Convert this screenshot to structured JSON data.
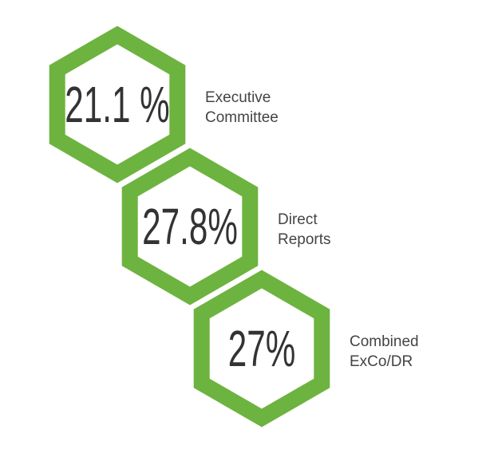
{
  "items": [
    {
      "value": "21.1 %",
      "label": [
        "Executive",
        "Committee"
      ]
    },
    {
      "value": "27.8%",
      "label": [
        "Direct",
        "Reports"
      ]
    },
    {
      "value": "27%",
      "label": [
        "Combined",
        "ExCo/DR"
      ]
    }
  ]
}
